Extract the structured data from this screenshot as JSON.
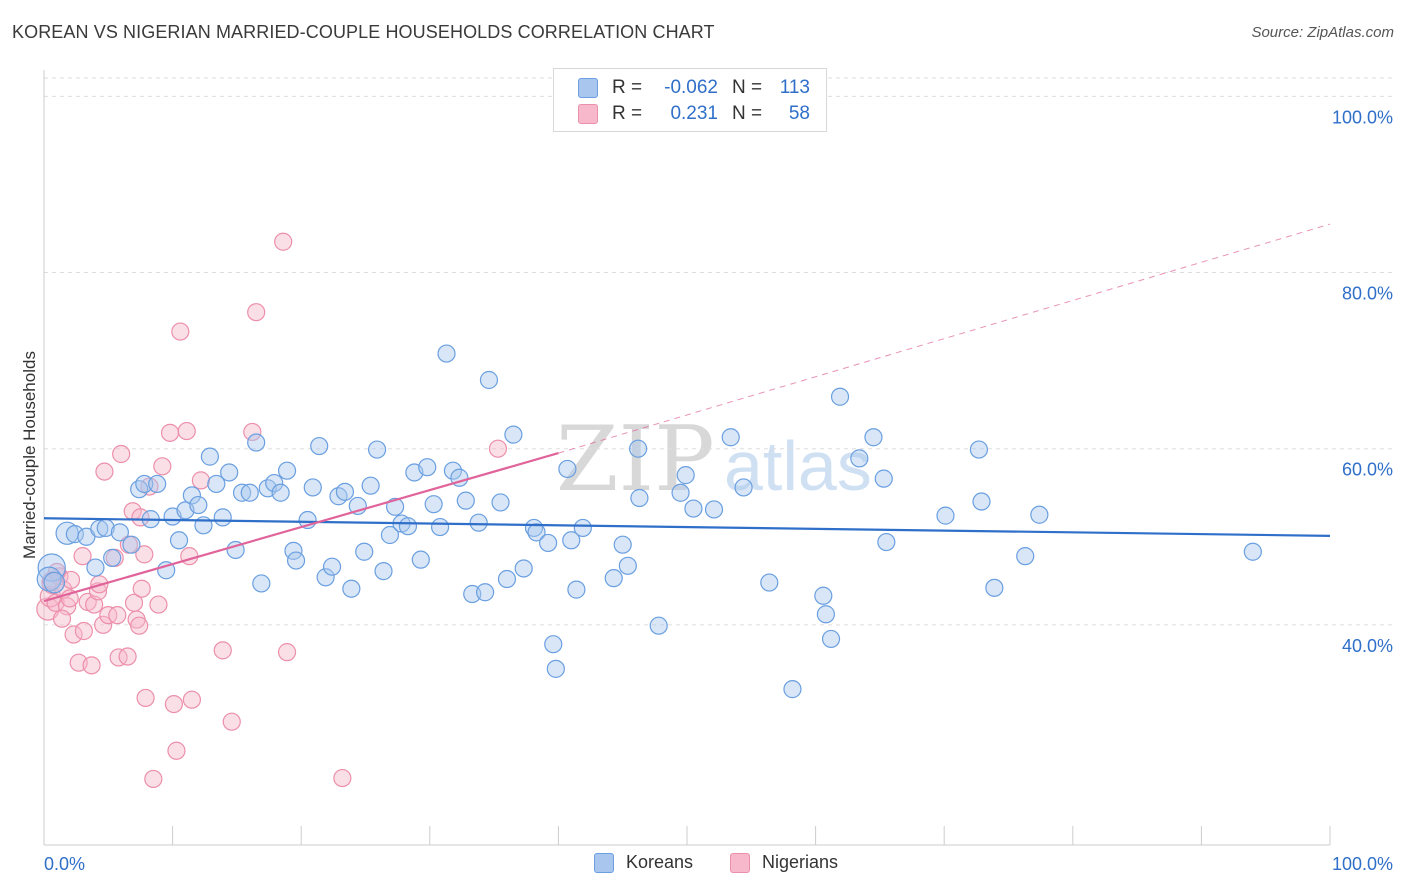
{
  "header": {
    "title": "KOREAN VS NIGERIAN MARRIED-COUPLE HOUSEHOLDS CORRELATION CHART",
    "source": "Source: ZipAtlas.com"
  },
  "colors": {
    "korean_fill": "#a9c7ee",
    "korean_stroke": "#6a9fe0",
    "korean_line": "#2f6fc9",
    "nigerian_fill": "#f6b8ca",
    "nigerian_stroke": "#ec8fab",
    "nigerian_line": "#e0649a",
    "axis_label": "#2f6fc9",
    "grid": "#dddddd"
  },
  "legend_top": {
    "rows": [
      {
        "label": "R =",
        "r": "-0.062",
        "n_label": "N =",
        "n": "113",
        "series": "korean"
      },
      {
        "label": "R =",
        "r": "0.231",
        "n_label": "N =",
        "n": "58",
        "series": "nigerian"
      }
    ]
  },
  "legend_bottom": {
    "items": [
      {
        "label": "Koreans",
        "series": "korean"
      },
      {
        "label": "Nigerians",
        "series": "nigerian"
      }
    ]
  },
  "watermark": {
    "zip": "ZIP",
    "atlas": "atlas"
  },
  "chart_data": {
    "type": "scatter",
    "title": "KOREAN VS NIGERIAN MARRIED-COUPLE HOUSEHOLDS CORRELATION CHART",
    "xlabel": "",
    "ylabel": "Married-couple Households",
    "xlim": [
      0,
      100
    ],
    "ylim": [
      15,
      103
    ],
    "x_tick_labels": {
      "min": "0.0%",
      "max": "100.0%"
    },
    "y_ticks": [
      {
        "value": 40,
        "label": "40.0%"
      },
      {
        "value": 60,
        "label": "60.0%"
      },
      {
        "value": 80,
        "label": "80.0%"
      },
      {
        "value": 100,
        "label": "100.0%"
      }
    ],
    "grid": true,
    "series": [
      {
        "name": "Koreans",
        "key": "korean",
        "R": -0.062,
        "N": 113,
        "trend": {
          "x": [
            0,
            100
          ],
          "y": [
            52.1,
            50.1
          ],
          "style": "solid"
        },
        "points": [
          {
            "x": 0.6,
            "y": 46.5,
            "s": 1.6
          },
          {
            "x": 0.4,
            "y": 45.2,
            "s": 1.4
          },
          {
            "x": 0.8,
            "y": 44.8,
            "s": 1.2
          },
          {
            "x": 1.8,
            "y": 50.4,
            "s": 1.3
          },
          {
            "x": 2.4,
            "y": 50.3
          },
          {
            "x": 3.3,
            "y": 50.0
          },
          {
            "x": 4.0,
            "y": 46.5
          },
          {
            "x": 4.3,
            "y": 50.9
          },
          {
            "x": 4.8,
            "y": 51.0
          },
          {
            "x": 5.3,
            "y": 47.6
          },
          {
            "x": 5.9,
            "y": 50.5
          },
          {
            "x": 6.8,
            "y": 49.1
          },
          {
            "x": 7.4,
            "y": 55.4
          },
          {
            "x": 7.8,
            "y": 56.0
          },
          {
            "x": 8.3,
            "y": 52.0
          },
          {
            "x": 8.8,
            "y": 56.0
          },
          {
            "x": 9.5,
            "y": 46.2
          },
          {
            "x": 10.0,
            "y": 52.3
          },
          {
            "x": 10.5,
            "y": 49.6
          },
          {
            "x": 11.0,
            "y": 53.0
          },
          {
            "x": 11.5,
            "y": 54.7
          },
          {
            "x": 12.0,
            "y": 53.6
          },
          {
            "x": 12.4,
            "y": 51.3
          },
          {
            "x": 12.9,
            "y": 59.1
          },
          {
            "x": 13.4,
            "y": 56.0
          },
          {
            "x": 13.9,
            "y": 52.2
          },
          {
            "x": 14.4,
            "y": 57.3
          },
          {
            "x": 14.9,
            "y": 48.5
          },
          {
            "x": 15.4,
            "y": 55.0
          },
          {
            "x": 16.0,
            "y": 55.0
          },
          {
            "x": 16.5,
            "y": 60.7
          },
          {
            "x": 16.9,
            "y": 44.7
          },
          {
            "x": 17.4,
            "y": 55.5
          },
          {
            "x": 17.9,
            "y": 56.1
          },
          {
            "x": 18.4,
            "y": 55.0
          },
          {
            "x": 18.9,
            "y": 57.5
          },
          {
            "x": 19.4,
            "y": 48.4
          },
          {
            "x": 19.6,
            "y": 47.3
          },
          {
            "x": 20.5,
            "y": 51.9
          },
          {
            "x": 20.9,
            "y": 55.6
          },
          {
            "x": 21.4,
            "y": 60.3
          },
          {
            "x": 21.9,
            "y": 45.4
          },
          {
            "x": 22.4,
            "y": 46.6
          },
          {
            "x": 22.9,
            "y": 54.6
          },
          {
            "x": 23.4,
            "y": 55.1
          },
          {
            "x": 23.9,
            "y": 44.1
          },
          {
            "x": 24.4,
            "y": 53.5
          },
          {
            "x": 24.9,
            "y": 48.3
          },
          {
            "x": 25.4,
            "y": 55.8
          },
          {
            "x": 25.9,
            "y": 59.9
          },
          {
            "x": 26.4,
            "y": 46.1
          },
          {
            "x": 26.9,
            "y": 50.2
          },
          {
            "x": 27.3,
            "y": 53.4
          },
          {
            "x": 27.8,
            "y": 51.5
          },
          {
            "x": 28.3,
            "y": 51.2
          },
          {
            "x": 28.8,
            "y": 57.3
          },
          {
            "x": 29.3,
            "y": 47.4
          },
          {
            "x": 29.8,
            "y": 57.9
          },
          {
            "x": 30.3,
            "y": 53.7
          },
          {
            "x": 30.8,
            "y": 51.1
          },
          {
            "x": 31.3,
            "y": 70.8
          },
          {
            "x": 31.8,
            "y": 57.5
          },
          {
            "x": 32.3,
            "y": 56.7
          },
          {
            "x": 32.8,
            "y": 54.1
          },
          {
            "x": 33.3,
            "y": 43.5
          },
          {
            "x": 33.8,
            "y": 51.6
          },
          {
            "x": 34.3,
            "y": 43.7
          },
          {
            "x": 34.6,
            "y": 67.8
          },
          {
            "x": 35.5,
            "y": 53.9
          },
          {
            "x": 36.0,
            "y": 45.2
          },
          {
            "x": 36.5,
            "y": 61.6
          },
          {
            "x": 37.3,
            "y": 46.4
          },
          {
            "x": 38.1,
            "y": 51.0
          },
          {
            "x": 38.3,
            "y": 50.5
          },
          {
            "x": 39.2,
            "y": 49.3
          },
          {
            "x": 39.6,
            "y": 37.8
          },
          {
            "x": 39.8,
            "y": 35.0
          },
          {
            "x": 40.7,
            "y": 57.7
          },
          {
            "x": 41.0,
            "y": 49.6
          },
          {
            "x": 41.4,
            "y": 44.0
          },
          {
            "x": 41.9,
            "y": 51.0
          },
          {
            "x": 44.3,
            "y": 45.3
          },
          {
            "x": 45.0,
            "y": 49.1
          },
          {
            "x": 45.4,
            "y": 46.7
          },
          {
            "x": 46.2,
            "y": 60.0
          },
          {
            "x": 46.3,
            "y": 54.4
          },
          {
            "x": 47.8,
            "y": 39.9
          },
          {
            "x": 49.5,
            "y": 55.0
          },
          {
            "x": 49.9,
            "y": 57.0
          },
          {
            "x": 50.5,
            "y": 53.2
          },
          {
            "x": 52.1,
            "y": 53.1
          },
          {
            "x": 53.4,
            "y": 61.3
          },
          {
            "x": 54.4,
            "y": 55.6
          },
          {
            "x": 56.4,
            "y": 44.8
          },
          {
            "x": 58.2,
            "y": 32.7
          },
          {
            "x": 60.6,
            "y": 43.3
          },
          {
            "x": 60.8,
            "y": 41.2
          },
          {
            "x": 61.2,
            "y": 38.4
          },
          {
            "x": 61.9,
            "y": 65.9
          },
          {
            "x": 63.4,
            "y": 58.9
          },
          {
            "x": 64.5,
            "y": 61.3
          },
          {
            "x": 65.3,
            "y": 56.6
          },
          {
            "x": 65.5,
            "y": 49.4
          },
          {
            "x": 70.1,
            "y": 52.4
          },
          {
            "x": 72.7,
            "y": 59.9
          },
          {
            "x": 72.9,
            "y": 54.0
          },
          {
            "x": 73.9,
            "y": 44.2
          },
          {
            "x": 76.3,
            "y": 47.8
          },
          {
            "x": 77.4,
            "y": 52.5
          },
          {
            "x": 94.0,
            "y": 48.3
          }
        ]
      },
      {
        "name": "Nigerians",
        "key": "nigerian",
        "R": 0.231,
        "N": 58,
        "trend": {
          "x": [
            0,
            40
          ],
          "y": [
            42.7,
            59.5
          ],
          "style": "solid",
          "extension": {
            "x": [
              40,
              100
            ],
            "y": [
              59.5,
              85.5
            ],
            "style": "dashed"
          }
        },
        "points": [
          {
            "x": 0.3,
            "y": 41.8,
            "s": 1.3
          },
          {
            "x": 0.5,
            "y": 43.2,
            "s": 1.2
          },
          {
            "x": 0.7,
            "y": 44.8,
            "s": 1.3
          },
          {
            "x": 0.9,
            "y": 42.5
          },
          {
            "x": 1.2,
            "y": 45.5
          },
          {
            "x": 1.5,
            "y": 44.0
          },
          {
            "x": 1.8,
            "y": 42.1
          },
          {
            "x": 2.1,
            "y": 45.1
          },
          {
            "x": 2.3,
            "y": 38.9
          },
          {
            "x": 2.7,
            "y": 35.7
          },
          {
            "x": 3.0,
            "y": 47.8
          },
          {
            "x": 3.1,
            "y": 39.3
          },
          {
            "x": 3.4,
            "y": 42.6
          },
          {
            "x": 3.7,
            "y": 35.4
          },
          {
            "x": 3.9,
            "y": 42.3
          },
          {
            "x": 4.2,
            "y": 43.8
          },
          {
            "x": 4.3,
            "y": 44.6
          },
          {
            "x": 4.6,
            "y": 40.0
          },
          {
            "x": 4.7,
            "y": 57.4
          },
          {
            "x": 5.0,
            "y": 41.1
          },
          {
            "x": 5.5,
            "y": 47.6
          },
          {
            "x": 5.7,
            "y": 41.1
          },
          {
            "x": 5.8,
            "y": 36.3
          },
          {
            "x": 6.0,
            "y": 59.4
          },
          {
            "x": 6.5,
            "y": 36.4
          },
          {
            "x": 6.6,
            "y": 49.1
          },
          {
            "x": 6.9,
            "y": 52.9
          },
          {
            "x": 7.0,
            "y": 42.5
          },
          {
            "x": 7.2,
            "y": 40.6
          },
          {
            "x": 7.4,
            "y": 39.9
          },
          {
            "x": 7.6,
            "y": 44.1
          },
          {
            "x": 7.8,
            "y": 48.0
          },
          {
            "x": 7.5,
            "y": 52.2
          },
          {
            "x": 7.9,
            "y": 31.7
          },
          {
            "x": 8.2,
            "y": 55.7
          },
          {
            "x": 8.5,
            "y": 22.5
          },
          {
            "x": 8.9,
            "y": 42.3
          },
          {
            "x": 9.2,
            "y": 58.0
          },
          {
            "x": 9.8,
            "y": 61.8
          },
          {
            "x": 10.1,
            "y": 31.0
          },
          {
            "x": 10.3,
            "y": 25.7
          },
          {
            "x": 10.6,
            "y": 73.3
          },
          {
            "x": 11.1,
            "y": 62.0
          },
          {
            "x": 11.3,
            "y": 47.8
          },
          {
            "x": 11.5,
            "y": 31.5
          },
          {
            "x": 12.2,
            "y": 56.4
          },
          {
            "x": 13.9,
            "y": 37.1
          },
          {
            "x": 14.6,
            "y": 29.0
          },
          {
            "x": 16.2,
            "y": 61.9
          },
          {
            "x": 16.5,
            "y": 75.5
          },
          {
            "x": 18.6,
            "y": 83.5
          },
          {
            "x": 18.9,
            "y": 36.9
          },
          {
            "x": 23.2,
            "y": 22.6
          },
          {
            "x": 35.3,
            "y": 60.0
          },
          {
            "x": 1.0,
            "y": 46.0
          },
          {
            "x": 2.0,
            "y": 43.0
          },
          {
            "x": 1.4,
            "y": 40.7
          },
          {
            "x": 0.6,
            "y": 45.0
          }
        ]
      }
    ]
  }
}
